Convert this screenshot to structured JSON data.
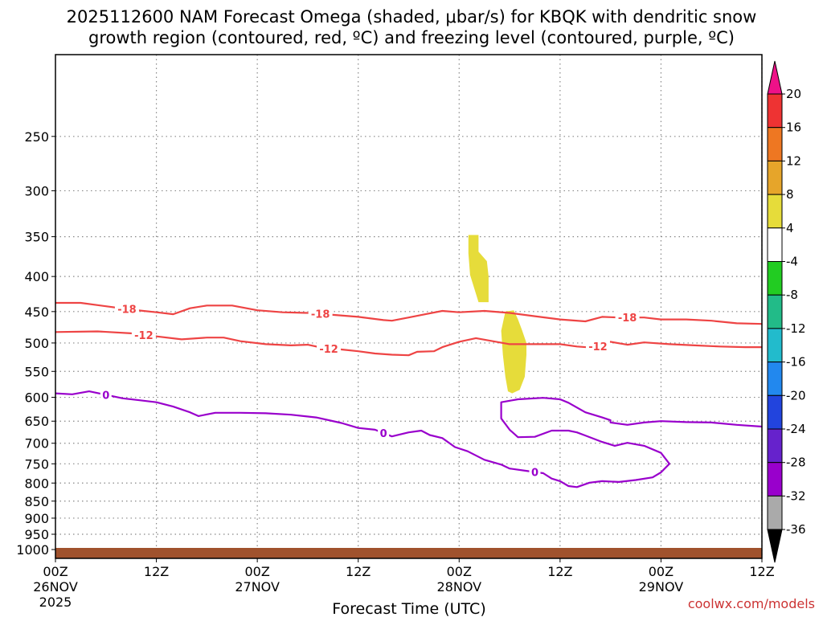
{
  "chart_data": {
    "type": "time-height contour",
    "title_line1": "2025112600 NAM Forecast Omega (shaded, μbar/s) for KBQK with dendritic snow",
    "title_line2": "growth region (contoured, red, ºC) and freezing level (contoured, purple, ºC)",
    "xlabel": "Forecast Time (UTC)",
    "credit": "coolwx.com/models",
    "credit_color": "#cc3333",
    "x_hours_range": [
      0,
      84
    ],
    "pressure_range": [
      1030,
      190
    ],
    "x_ticks": [
      {
        "h": 0,
        "l1": "00Z",
        "l2": "26NOV",
        "l3": "2025"
      },
      {
        "h": 12,
        "l1": "12Z",
        "l2": "",
        "l3": ""
      },
      {
        "h": 24,
        "l1": "00Z",
        "l2": "27NOV",
        "l3": ""
      },
      {
        "h": 36,
        "l1": "12Z",
        "l2": "",
        "l3": ""
      },
      {
        "h": 48,
        "l1": "00Z",
        "l2": "28NOV",
        "l3": ""
      },
      {
        "h": 60,
        "l1": "12Z",
        "l2": "",
        "l3": ""
      },
      {
        "h": 72,
        "l1": "00Z",
        "l2": "29NOV",
        "l3": ""
      },
      {
        "h": 84,
        "l1": "12Z",
        "l2": "",
        "l3": ""
      }
    ],
    "y_ticks": [
      250,
      300,
      350,
      400,
      450,
      500,
      550,
      600,
      650,
      700,
      750,
      800,
      850,
      900,
      950,
      1000
    ],
    "minus18_color": "#ee4444",
    "minus12_color": "#ee4444",
    "freezing_color": "#9900cc",
    "terrain_color": "#a0522d",
    "shade_color": "#e6dc3a",
    "contour_m18": {
      "label": "-18",
      "label_hours": [
        8.5,
        31.5,
        68
      ],
      "points": [
        [
          0,
          437
        ],
        [
          3,
          437
        ],
        [
          6,
          442
        ],
        [
          9,
          447
        ],
        [
          12,
          451
        ],
        [
          14,
          454
        ],
        [
          16,
          445
        ],
        [
          18,
          441
        ],
        [
          21,
          441
        ],
        [
          24,
          448
        ],
        [
          27,
          451
        ],
        [
          30,
          452
        ],
        [
          33,
          455
        ],
        [
          36,
          458
        ],
        [
          39,
          463
        ],
        [
          40,
          464
        ],
        [
          42,
          459
        ],
        [
          44,
          454
        ],
        [
          46,
          449
        ],
        [
          48,
          451
        ],
        [
          51,
          449
        ],
        [
          54,
          452
        ],
        [
          57,
          457
        ],
        [
          60,
          462
        ],
        [
          63,
          465
        ],
        [
          65,
          458
        ],
        [
          67,
          459
        ],
        [
          70,
          459
        ],
        [
          72,
          462
        ],
        [
          75,
          462
        ],
        [
          78,
          464
        ],
        [
          81,
          468
        ],
        [
          84,
          469
        ]
      ]
    },
    "contour_m12": {
      "label": "-12",
      "label_hours": [
        10.5,
        32.5,
        64.5
      ],
      "points": [
        [
          0,
          482
        ],
        [
          5,
          481
        ],
        [
          9,
          484
        ],
        [
          12,
          489
        ],
        [
          15,
          494
        ],
        [
          18,
          491
        ],
        [
          20,
          491
        ],
        [
          22,
          497
        ],
        [
          25,
          502
        ],
        [
          28,
          504
        ],
        [
          30,
          503
        ],
        [
          32,
          509
        ],
        [
          34,
          511
        ],
        [
          36,
          514
        ],
        [
          38,
          518
        ],
        [
          40,
          520
        ],
        [
          42,
          521
        ],
        [
          43,
          515
        ],
        [
          45,
          514
        ],
        [
          46,
          507
        ],
        [
          48,
          498
        ],
        [
          50,
          492
        ],
        [
          52,
          497
        ],
        [
          54,
          502
        ],
        [
          57,
          502
        ],
        [
          60,
          502
        ],
        [
          62,
          506
        ],
        [
          64,
          508
        ],
        [
          66,
          498
        ],
        [
          68,
          503
        ],
        [
          70,
          499
        ],
        [
          73,
          502
        ],
        [
          76,
          504
        ],
        [
          79,
          506
        ],
        [
          82,
          507
        ],
        [
          84,
          507
        ]
      ]
    },
    "contour_0": {
      "label": "0",
      "label_hours": [
        6,
        39,
        57
      ],
      "points": [
        [
          0,
          592
        ],
        [
          2,
          594
        ],
        [
          4,
          588
        ],
        [
          6,
          595
        ],
        [
          8,
          602
        ],
        [
          10,
          606
        ],
        [
          12,
          610
        ],
        [
          14,
          619
        ],
        [
          16,
          631
        ],
        [
          17,
          639
        ],
        [
          19,
          632
        ],
        [
          22,
          632
        ],
        [
          25,
          633
        ],
        [
          28,
          636
        ],
        [
          31,
          642
        ],
        [
          34,
          654
        ],
        [
          36,
          665
        ],
        [
          38,
          669
        ],
        [
          40,
          684
        ],
        [
          42,
          675
        ],
        [
          43.5,
          671
        ],
        [
          44.5,
          681
        ],
        [
          46,
          688
        ],
        [
          47.5,
          709
        ],
        [
          49,
          719
        ],
        [
          51,
          740
        ],
        [
          53,
          752
        ],
        [
          54,
          762
        ],
        [
          56,
          768
        ],
        [
          58,
          774
        ],
        [
          59,
          788
        ],
        [
          60,
          795
        ],
        [
          61,
          808
        ],
        [
          62,
          811
        ],
        [
          63.5,
          799
        ],
        [
          65,
          795
        ],
        [
          67,
          797
        ],
        [
          69,
          792
        ],
        [
          71,
          785
        ],
        [
          72,
          772
        ],
        [
          73,
          750
        ],
        [
          72,
          723
        ],
        [
          70,
          706
        ],
        [
          68,
          699
        ],
        [
          66.5,
          706
        ],
        [
          65,
          697
        ],
        [
          63,
          682
        ],
        [
          62,
          675
        ],
        [
          61,
          671
        ],
        [
          59,
          671
        ],
        [
          57,
          685
        ],
        [
          55,
          686
        ],
        [
          54,
          669
        ],
        [
          53,
          644
        ],
        [
          53,
          610
        ],
        [
          55,
          604
        ],
        [
          58,
          601
        ],
        [
          60,
          604
        ],
        [
          61,
          611
        ],
        [
          63,
          631
        ],
        [
          65,
          642
        ],
        [
          66,
          648
        ],
        [
          66,
          653
        ],
        [
          68,
          658
        ],
        [
          70,
          653
        ],
        [
          72,
          650
        ],
        [
          75,
          652
        ],
        [
          78,
          653
        ],
        [
          81,
          658
        ],
        [
          84,
          662
        ]
      ]
    },
    "omega_shades": [
      {
        "value": 4,
        "points": [
          [
            49.1,
            348
          ],
          [
            50.3,
            348
          ],
          [
            50.3,
            368
          ],
          [
            51.3,
            380
          ],
          [
            51.5,
            400
          ],
          [
            51.5,
            436
          ],
          [
            50.3,
            436
          ],
          [
            50.0,
            424
          ],
          [
            49.3,
            398
          ],
          [
            49.1,
            370
          ]
        ]
      },
      {
        "value": 4,
        "points": [
          [
            53.5,
            450
          ],
          [
            54.5,
            448
          ],
          [
            55.0,
            462
          ],
          [
            55.5,
            480
          ],
          [
            56.0,
            500
          ],
          [
            56.0,
            520
          ],
          [
            55.8,
            560
          ],
          [
            55.2,
            585
          ],
          [
            54.3,
            592
          ],
          [
            53.8,
            588
          ],
          [
            53.5,
            560
          ],
          [
            53.2,
            520
          ],
          [
            53.0,
            480
          ]
        ]
      }
    ],
    "colorbar": {
      "entries": [
        {
          "label": "20",
          "color": "#ee1188"
        },
        {
          "label": "16",
          "color": "#ee3333"
        },
        {
          "label": "12",
          "color": "#ee7722"
        },
        {
          "label": "8",
          "color": "#e6a52a"
        },
        {
          "label": "4",
          "color": "#e6dc3a"
        },
        {
          "label": "-4",
          "color": "#ffffff"
        },
        {
          "label": "-8",
          "color": "#22cc22"
        },
        {
          "label": "-12",
          "color": "#22bb88"
        },
        {
          "label": "-16",
          "color": "#22bbcc"
        },
        {
          "label": "-20",
          "color": "#2288ee"
        },
        {
          "label": "-24",
          "color": "#2244dd"
        },
        {
          "label": "-28",
          "color": "#6622cc"
        },
        {
          "label": "-32",
          "color": "#9900cc"
        },
        {
          "label": "-36",
          "color": "#aaaaaa"
        }
      ],
      "bottom_color": "#000000"
    }
  }
}
